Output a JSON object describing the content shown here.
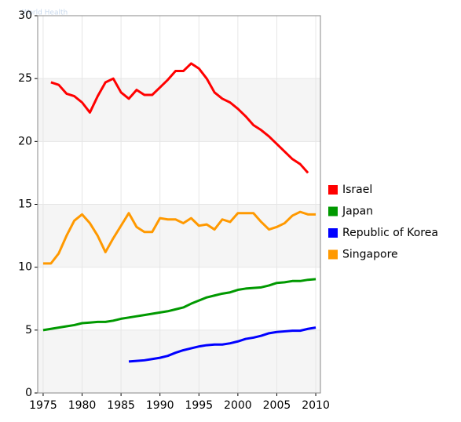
{
  "chart_data": {
    "type": "line",
    "watermark": "World Health",
    "xlim": [
      1974.3,
      2010.6
    ],
    "ylim": [
      0,
      30
    ],
    "xticks": [
      1975,
      1980,
      1985,
      1990,
      1995,
      2000,
      2005,
      2010
    ],
    "yticks": [
      0,
      5,
      10,
      15,
      20,
      25,
      30
    ],
    "grid": true,
    "legend": "right",
    "series": [
      {
        "name": "Israel",
        "color": "#ff0000",
        "x": [
          1976,
          1977,
          1978,
          1979,
          1980,
          1981,
          1982,
          1983,
          1984,
          1985,
          1986,
          1987,
          1988,
          1989,
          1990,
          1991,
          1992,
          1993,
          1994,
          1995,
          1996,
          1997,
          1998,
          1999,
          2000,
          2001,
          2002,
          2003,
          2004,
          2005,
          2006,
          2007,
          2008,
          2009
        ],
        "values": [
          24.7,
          24.5,
          23.8,
          23.6,
          23.1,
          22.3,
          23.6,
          24.7,
          25.0,
          23.9,
          23.4,
          24.1,
          23.7,
          23.7,
          24.3,
          24.9,
          25.6,
          25.6,
          26.2,
          25.8,
          25.0,
          23.9,
          23.4,
          23.1,
          22.6,
          22.0,
          21.3,
          20.9,
          20.4,
          19.8,
          19.2,
          18.6,
          18.2,
          17.5
        ]
      },
      {
        "name": "Japan",
        "color": "#009900",
        "x": [
          1975,
          1976,
          1977,
          1978,
          1979,
          1980,
          1981,
          1982,
          1983,
          1984,
          1985,
          1986,
          1987,
          1988,
          1989,
          1990,
          1991,
          1992,
          1993,
          1994,
          1995,
          1996,
          1997,
          1998,
          1999,
          2000,
          2001,
          2002,
          2003,
          2004,
          2005,
          2006,
          2007,
          2008,
          2009,
          2010
        ],
        "values": [
          5.0,
          5.1,
          5.2,
          5.3,
          5.4,
          5.55,
          5.6,
          5.65,
          5.65,
          5.75,
          5.9,
          6.0,
          6.1,
          6.2,
          6.3,
          6.4,
          6.5,
          6.65,
          6.8,
          7.1,
          7.35,
          7.6,
          7.75,
          7.9,
          8.0,
          8.2,
          8.3,
          8.35,
          8.4,
          8.55,
          8.75,
          8.8,
          8.9,
          8.9,
          9.0,
          9.05
        ]
      },
      {
        "name": "Republic of Korea",
        "color": "#0000ff",
        "x": [
          1986,
          1987,
          1988,
          1989,
          1990,
          1991,
          1992,
          1993,
          1994,
          1995,
          1996,
          1997,
          1998,
          1999,
          2000,
          2001,
          2002,
          2003,
          2004,
          2005,
          2006,
          2007,
          2008,
          2009,
          2010
        ],
        "values": [
          2.5,
          2.55,
          2.6,
          2.7,
          2.8,
          2.95,
          3.2,
          3.4,
          3.55,
          3.7,
          3.8,
          3.85,
          3.85,
          3.95,
          4.1,
          4.3,
          4.4,
          4.55,
          4.75,
          4.85,
          4.9,
          4.95,
          4.95,
          5.1,
          5.2
        ]
      },
      {
        "name": "Singapore",
        "color": "#ff9900",
        "x": [
          1975,
          1976,
          1977,
          1978,
          1979,
          1980,
          1981,
          1982,
          1983,
          1984,
          1985,
          1986,
          1987,
          1988,
          1989,
          1990,
          1991,
          1992,
          1993,
          1994,
          1995,
          1996,
          1997,
          1998,
          1999,
          2000,
          2001,
          2002,
          2003,
          2004,
          2005,
          2006,
          2007,
          2008,
          2009,
          2010
        ],
        "values": [
          10.3,
          10.3,
          11.1,
          12.5,
          13.7,
          14.2,
          13.5,
          12.5,
          11.2,
          12.3,
          13.3,
          14.3,
          13.2,
          12.8,
          12.8,
          13.9,
          13.8,
          13.8,
          13.5,
          13.9,
          13.3,
          13.4,
          13.0,
          13.8,
          13.6,
          14.3,
          14.3,
          14.3,
          13.6,
          13.0,
          13.2,
          13.5,
          14.1,
          14.4,
          14.2,
          14.2
        ]
      }
    ]
  }
}
